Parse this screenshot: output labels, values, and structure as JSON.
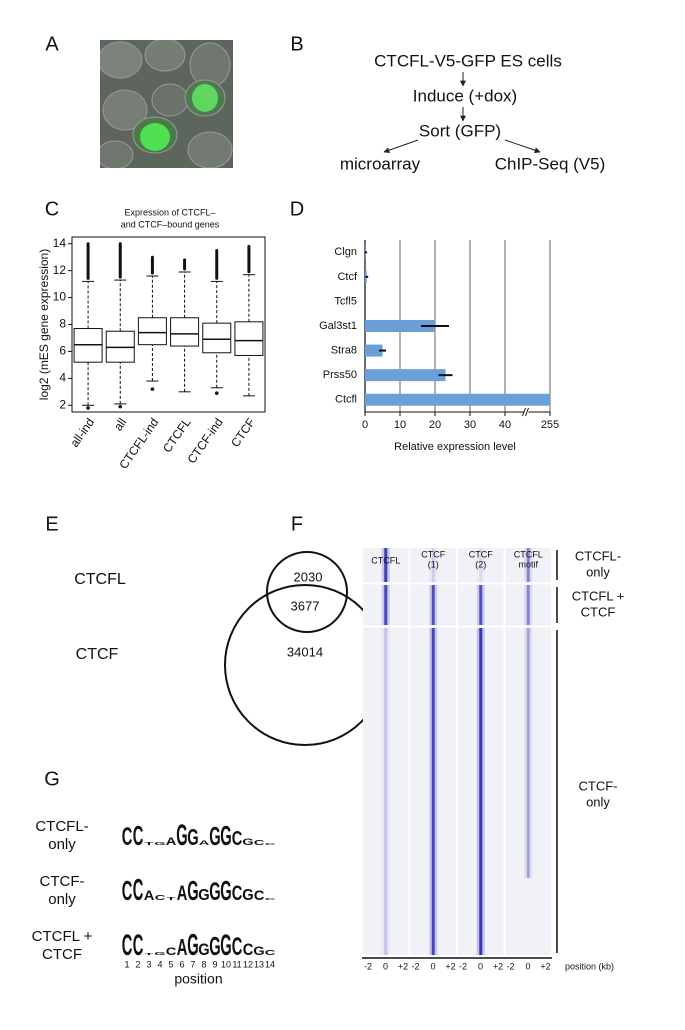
{
  "panel_labels": [
    "A",
    "B",
    "C",
    "D",
    "E",
    "F",
    "G"
  ],
  "flow": [
    "CTCFL-V5-GFP ES cells",
    "Induce (+dox)",
    "Sort (GFP)",
    "microarray",
    "ChIP-Seq (V5)"
  ],
  "chart_data": [
    {
      "type": "box",
      "title": [
        "Expression of CTCFL–",
        "and CTCF–bound genes"
      ],
      "ylabel": "log2 (mES gene expression)",
      "categories": [
        "all-ind",
        "all",
        "CTCFL-ind",
        "CTCFL",
        "CTCF-ind",
        "CTCF"
      ],
      "whisker_low": [
        2.0,
        2.1,
        3.8,
        3.0,
        3.3,
        2.7
      ],
      "q1": [
        5.2,
        5.2,
        6.5,
        6.4,
        5.9,
        5.7
      ],
      "median": [
        6.5,
        6.3,
        7.4,
        7.3,
        6.9,
        6.8
      ],
      "q3": [
        7.7,
        7.5,
        8.5,
        8.5,
        8.1,
        8.2
      ],
      "whisker_high": [
        11.2,
        11.3,
        11.6,
        11.9,
        11.2,
        11.7
      ],
      "outliers_high": [
        14.0,
        14.0,
        13.0,
        12.8,
        13.5,
        13.8
      ],
      "outliers_low": [
        1.8,
        1.9,
        3.2,
        null,
        2.9,
        null
      ],
      "ylim": [
        1.5,
        14.5
      ],
      "yticks": [
        2,
        4,
        6,
        8,
        10,
        12,
        14
      ]
    },
    {
      "type": "hbar",
      "categories": [
        "Clgn",
        "Ctcf",
        "Tcfl5",
        "Gal3st1",
        "Stra8",
        "Prss50",
        "Ctcfl"
      ],
      "values": [
        0.3,
        0.5,
        0,
        20,
        5,
        23,
        255
      ],
      "errors": [
        0.3,
        0.4,
        0,
        4,
        1,
        2,
        0
      ],
      "color": "#6a9fd8",
      "xlim": [
        0,
        255
      ],
      "axis_break": [
        45,
        250
      ],
      "xticks": [
        0,
        10,
        20,
        30,
        40,
        255
      ],
      "xlabel": "Relative expression level",
      "grid": true
    }
  ],
  "venn": {
    "sets": [
      "CTCFL",
      "CTCF"
    ],
    "counts": [
      "2030",
      "3677",
      "34014"
    ]
  },
  "heatmap": {
    "columns": [
      [
        "CTCFL"
      ],
      [
        "CTCF",
        "(1)"
      ],
      [
        "CTCF",
        "(2)"
      ],
      [
        "CTCFL",
        "motif"
      ]
    ],
    "groups": [
      [
        "CTCFL-",
        "only"
      ],
      [
        "CTCFL +",
        "CTCF"
      ],
      [
        "CTCF-",
        "only"
      ]
    ],
    "x_labels": [
      "-2",
      "0",
      "+2"
    ],
    "x_axis_label": "position (kb)"
  },
  "logo": {
    "rows": [
      {
        "label": [
          "CTCFL-",
          "only"
        ],
        "letters": [
          "C",
          "C",
          "T",
          "G",
          "A",
          "G",
          "G",
          "A",
          "G",
          "G",
          "C",
          "G",
          "C",
          "C"
        ],
        "heights": [
          1.6,
          1.8,
          0.3,
          0.3,
          0.7,
          1.9,
          1.5,
          0.4,
          1.7,
          1.8,
          1.3,
          0.6,
          0.5,
          0.2
        ]
      },
      {
        "label": [
          "CTCF-",
          "only"
        ],
        "letters": [
          "C",
          "C",
          "A",
          "C",
          "T",
          "A",
          "G",
          "G",
          "G",
          "G",
          "C",
          "G",
          "C",
          "C"
        ],
        "heights": [
          1.8,
          2.0,
          0.9,
          0.5,
          0.3,
          1.4,
          1.8,
          1.0,
          1.6,
          1.8,
          1.4,
          1.0,
          0.9,
          0.2
        ]
      },
      {
        "label": [
          "CTCFL +",
          "CTCF"
        ],
        "letters": [
          "C",
          "C",
          "T",
          "G",
          "C",
          "A",
          "G",
          "G",
          "G",
          "G",
          "C",
          "C",
          "G",
          "C"
        ],
        "heights": [
          1.9,
          1.9,
          0.2,
          0.3,
          0.7,
          1.5,
          2.0,
          1.1,
          1.7,
          1.9,
          1.6,
          1.1,
          0.8,
          0.5
        ]
      }
    ],
    "positions": [
      "1",
      "2",
      "3",
      "4",
      "5",
      "6",
      "7",
      "8",
      "9",
      "10",
      "11",
      "12",
      "13",
      "14"
    ],
    "x_axis_label": "position"
  }
}
